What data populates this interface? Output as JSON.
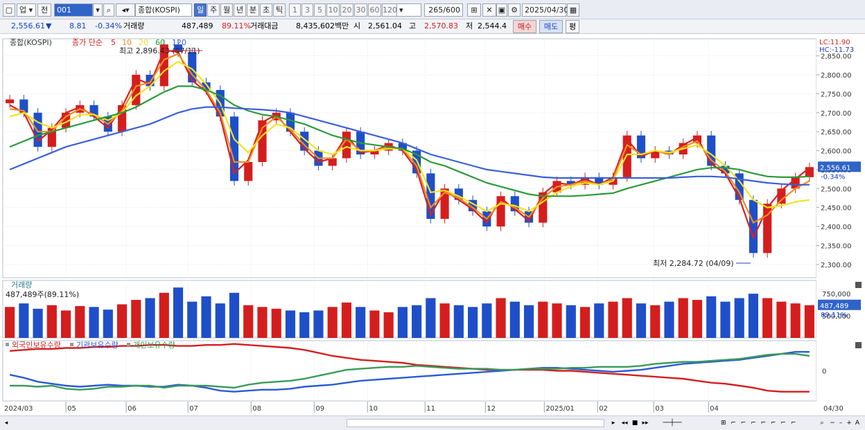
{
  "toolbar": {
    "market": "업",
    "prev": "전",
    "code": "001",
    "index_name": "종합(KOSPI)",
    "periods": [
      "일",
      "주",
      "월",
      "년",
      "분",
      "초",
      "틱"
    ],
    "intervals": [
      "1",
      "3",
      "5",
      "10",
      "20",
      "30",
      "60",
      "120"
    ],
    "count": "265",
    "count_max": "/600",
    "date": "2025/04/30"
  },
  "quote": {
    "price": "2,556.61",
    "change_arrow": "▼",
    "change": "8.81",
    "change_pct": "-0.34%",
    "volume_label": "거래량",
    "volume": "487,489",
    "volume_ratio": "89.11%",
    "amount_label": "거래대금",
    "amount": "8,435,602백만",
    "open_label": "시",
    "open": "2,561.04",
    "high_label": "고",
    "high": "2,570.83",
    "low_label": "저",
    "low": "2,544.4",
    "buy_label": "매수",
    "sell_label": "매도",
    "avg_label": "평"
  },
  "price_panel": {
    "title": "종합(KOSPI)",
    "ma_label": "종가 단순",
    "ma_periods": [
      "5",
      "10",
      "20",
      "60",
      "120"
    ],
    "lc_label": "LC:11.90",
    "hc_label": "HC:-11.73",
    "last_label": "2,556.61",
    "last_change": "-0.34%",
    "high_annotation": "최고 2,896.43 (07/11)",
    "low_annotation": "최저 2,284.72 (04/09)"
  },
  "volume_panel": {
    "title": "거래량",
    "info": "487,489주(89.11%)",
    "last_label": "487,489",
    "last_ratio": "89.11%"
  },
  "holdings_panel": {
    "series_labels": [
      "외국인보유수량",
      "기관보유수량",
      "개인보유수량"
    ]
  },
  "colors": {
    "up": "#d41e1e",
    "down": "#1f4fc8",
    "ma5": "#d82020",
    "ma10": "#f28c1e",
    "ma20": "#f2e31e",
    "ma60": "#2a9a3a",
    "ma120": "#3a5fd8",
    "foreign": "#d41e1e",
    "institution": "#2a5ad8",
    "individual": "#3a9a5a"
  },
  "chart_data": [
    {
      "type": "candlestick",
      "title": "종합(KOSPI)",
      "x_range": [
        "2024/03",
        "2025/04/30"
      ],
      "x_ticks": [
        "2024/03",
        "05",
        "06",
        "07",
        "08",
        "09",
        "10",
        "11",
        "12",
        "2025/01",
        "02",
        "03",
        "04",
        "04/30"
      ],
      "y_ticks": [
        "2,850.00",
        "2,800.00",
        "2,750.00",
        "2,700.00",
        "2,650.00",
        "2,600.00",
        "2,550.00",
        "2,500.00",
        "2,450.00",
        "2,400.00",
        "2,350.00",
        "2,300.00"
      ],
      "ylim": [
        2265,
        2895
      ],
      "series": [
        {
          "name": "종합(KOSPI)",
          "values": [
            2735,
            2700,
            2610,
            2660,
            2700,
            2720,
            2690,
            2650,
            2720,
            2800,
            2770,
            2880,
            2860,
            2780,
            2760,
            2690,
            2520,
            2570,
            2680,
            2700,
            2650,
            2600,
            2560,
            2580,
            2650,
            2590,
            2600,
            2620,
            2600,
            2540,
            2420,
            2500,
            2470,
            2440,
            2400,
            2480,
            2440,
            2410,
            2490,
            2520,
            2510,
            2530,
            2510,
            2530,
            2640,
            2580,
            2600,
            2590,
            2620,
            2640,
            2560,
            2540,
            2470,
            2330,
            2460,
            2500,
            2530,
            2556.61
          ]
        }
      ],
      "ma_series": [
        {
          "name": "5",
          "values": [
            2720,
            2700,
            2625,
            2655,
            2700,
            2715,
            2690,
            2660,
            2715,
            2790,
            2775,
            2865,
            2860,
            2785,
            2755,
            2690,
            2540,
            2575,
            2675,
            2695,
            2650,
            2605,
            2570,
            2580,
            2640,
            2595,
            2600,
            2615,
            2600,
            2550,
            2430,
            2495,
            2470,
            2445,
            2410,
            2475,
            2445,
            2415,
            2485,
            2515,
            2510,
            2525,
            2510,
            2530,
            2630,
            2585,
            2600,
            2590,
            2615,
            2635,
            2565,
            2540,
            2475,
            2370,
            2450,
            2495,
            2525,
            2555
          ]
        },
        {
          "name": "10",
          "values": [
            2710,
            2705,
            2650,
            2650,
            2690,
            2710,
            2695,
            2670,
            2705,
            2770,
            2780,
            2840,
            2855,
            2800,
            2760,
            2700,
            2570,
            2570,
            2660,
            2690,
            2655,
            2615,
            2580,
            2580,
            2630,
            2600,
            2600,
            2610,
            2605,
            2560,
            2450,
            2490,
            2475,
            2450,
            2420,
            2465,
            2450,
            2425,
            2475,
            2505,
            2510,
            2520,
            2510,
            2525,
            2615,
            2590,
            2600,
            2590,
            2610,
            2625,
            2575,
            2545,
            2490,
            2410,
            2430,
            2470,
            2500,
            2520
          ]
        },
        {
          "name": "20",
          "values": [
            2690,
            2700,
            2675,
            2660,
            2675,
            2695,
            2695,
            2680,
            2700,
            2745,
            2770,
            2810,
            2835,
            2815,
            2775,
            2725,
            2630,
            2595,
            2640,
            2670,
            2660,
            2630,
            2600,
            2590,
            2610,
            2600,
            2600,
            2605,
            2605,
            2575,
            2490,
            2495,
            2480,
            2460,
            2440,
            2460,
            2455,
            2440,
            2465,
            2490,
            2505,
            2515,
            2510,
            2520,
            2590,
            2590,
            2600,
            2595,
            2605,
            2615,
            2590,
            2560,
            2520,
            2470,
            2450,
            2455,
            2465,
            2470
          ]
        },
        {
          "name": "60",
          "values": [
            2610,
            2625,
            2640,
            2650,
            2660,
            2670,
            2680,
            2690,
            2700,
            2715,
            2735,
            2755,
            2770,
            2770,
            2760,
            2745,
            2720,
            2705,
            2695,
            2690,
            2680,
            2670,
            2655,
            2640,
            2630,
            2620,
            2615,
            2610,
            2605,
            2590,
            2570,
            2560,
            2545,
            2530,
            2515,
            2505,
            2495,
            2485,
            2480,
            2480,
            2480,
            2482,
            2485,
            2488,
            2500,
            2510,
            2520,
            2530,
            2540,
            2550,
            2555,
            2555,
            2550,
            2540,
            2532,
            2530,
            2530,
            2532
          ]
        },
        {
          "name": "120",
          "values": [
            2550,
            2565,
            2580,
            2595,
            2610,
            2620,
            2630,
            2640,
            2650,
            2660,
            2670,
            2685,
            2700,
            2710,
            2715,
            2715,
            2712,
            2710,
            2708,
            2705,
            2700,
            2690,
            2680,
            2670,
            2660,
            2650,
            2640,
            2630,
            2620,
            2605,
            2590,
            2580,
            2570,
            2560,
            2550,
            2545,
            2540,
            2535,
            2530,
            2528,
            2528,
            2528,
            2528,
            2528,
            2528,
            2528,
            2528,
            2528,
            2530,
            2532,
            2532,
            2530,
            2525,
            2520,
            2515,
            2512,
            2510,
            2510
          ]
        }
      ]
    },
    {
      "type": "bar",
      "title": "거래량",
      "y_ticks": [
        "750,000",
        "500,000"
      ],
      "ylim": [
        250000,
        900000
      ],
      "series": [
        {
          "name": "거래량",
          "values": [
            600000,
            640000,
            580000,
            620000,
            560000,
            610000,
            600000,
            570000,
            630000,
            680000,
            700000,
            760000,
            820000,
            660000,
            720000,
            640000,
            760000,
            620000,
            600000,
            580000,
            560000,
            540000,
            560000,
            600000,
            650000,
            600000,
            560000,
            540000,
            600000,
            620000,
            700000,
            640000,
            620000,
            600000,
            640000,
            700000,
            660000,
            620000,
            660000,
            640000,
            620000,
            600000,
            640000,
            660000,
            700000,
            640000,
            620000,
            660000,
            700000,
            680000,
            720000,
            660000,
            700000,
            750000,
            700000,
            660000,
            640000,
            620000
          ]
        }
      ]
    },
    {
      "type": "line",
      "title": "",
      "y_ticks": [
        "0"
      ],
      "series": [
        {
          "name": "외국인보유수량",
          "values": [
            40,
            42,
            44,
            44,
            46,
            46,
            48,
            48,
            50,
            50,
            52,
            52,
            50,
            50,
            52,
            52,
            54,
            52,
            50,
            48,
            46,
            42,
            36,
            30,
            26,
            22,
            20,
            18,
            16,
            12,
            10,
            8,
            6,
            4,
            2,
            2,
            2,
            2,
            2,
            0,
            0,
            -2,
            -4,
            -6,
            -8,
            -10,
            -12,
            -14,
            -16,
            -20,
            -24,
            -26,
            -30,
            -34,
            -40,
            -42,
            -42,
            -42
          ]
        },
        {
          "name": "기관보유수량",
          "values": [
            -8,
            -14,
            -22,
            -26,
            -30,
            -32,
            -30,
            -28,
            -30,
            -30,
            -32,
            -32,
            -28,
            -30,
            -34,
            -40,
            -42,
            -40,
            -38,
            -38,
            -36,
            -32,
            -30,
            -28,
            -24,
            -20,
            -18,
            -16,
            -14,
            -12,
            -10,
            -8,
            -6,
            -4,
            -2,
            0,
            2,
            4,
            6,
            6,
            4,
            2,
            0,
            -2,
            0,
            2,
            6,
            10,
            14,
            16,
            18,
            20,
            22,
            26,
            30,
            34,
            38,
            38
          ]
        },
        {
          "name": "개인보유수량",
          "values": [
            -30,
            -30,
            -32,
            -30,
            -36,
            -38,
            -36,
            -32,
            -32,
            -30,
            -30,
            -34,
            -30,
            -30,
            -30,
            -32,
            -34,
            -28,
            -24,
            -22,
            -20,
            -16,
            -10,
            -4,
            2,
            4,
            6,
            8,
            8,
            10,
            8,
            6,
            4,
            4,
            4,
            2,
            2,
            4,
            4,
            4,
            6,
            6,
            8,
            8,
            8,
            10,
            14,
            16,
            18,
            18,
            20,
            22,
            24,
            28,
            32,
            34,
            34,
            30
          ]
        }
      ]
    }
  ]
}
